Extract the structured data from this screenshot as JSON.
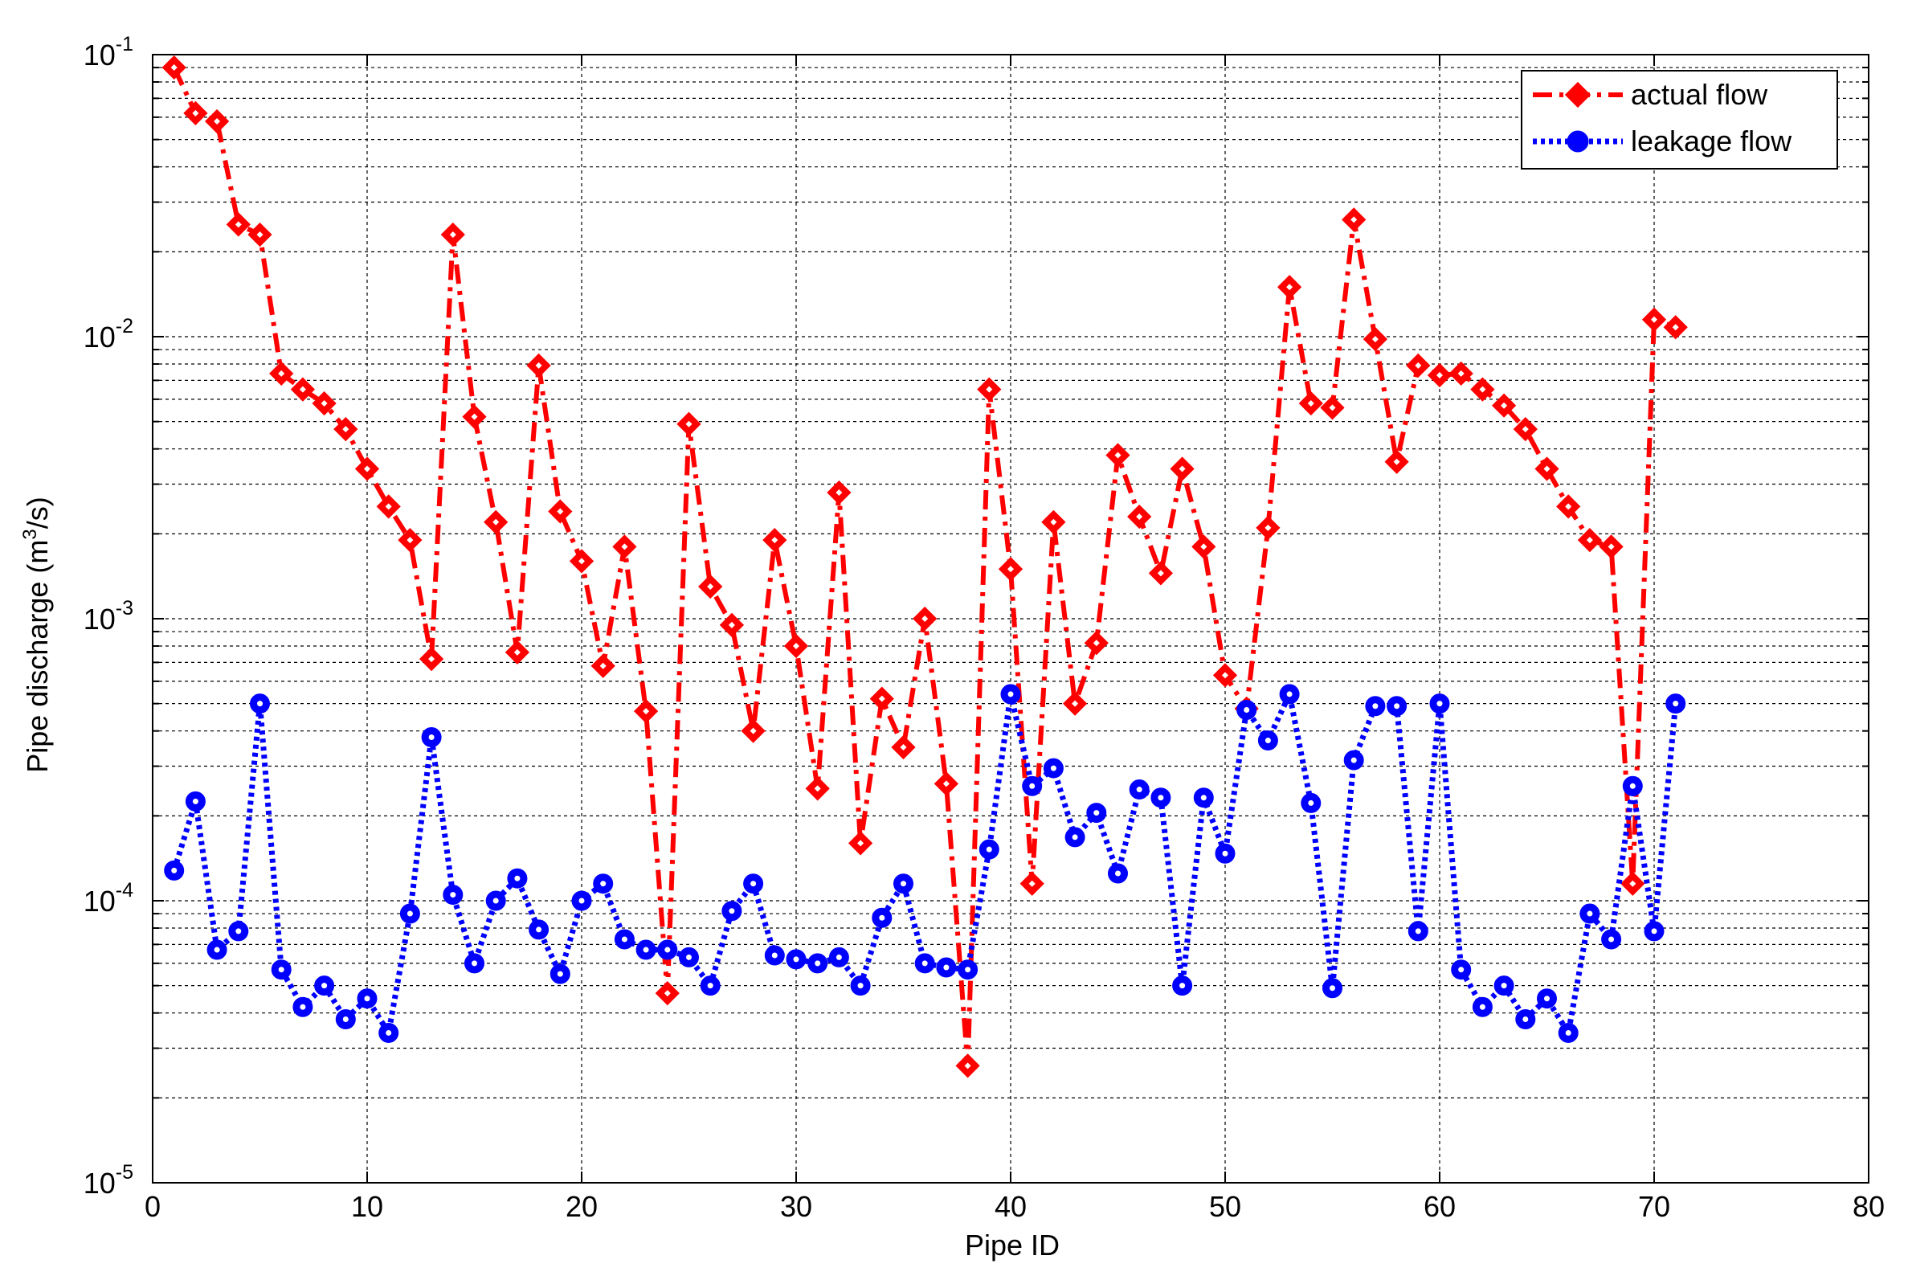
{
  "chart_data": {
    "type": "line",
    "title": "",
    "xlabel": "Pipe ID",
    "ylabel_prefix": "Pipe discharge (m",
    "ylabel_sup": "3",
    "ylabel_suffix": "/s)",
    "x_scale": "linear",
    "y_scale": "log",
    "xlim": [
      0,
      80
    ],
    "ylim": [
      1e-05,
      0.1
    ],
    "xticks": [
      0,
      10,
      20,
      30,
      40,
      50,
      60,
      70,
      80
    ],
    "yticks": [
      {
        "value": 0.1,
        "base": "10",
        "exp": "-1"
      },
      {
        "value": 0.01,
        "base": "10",
        "exp": "-2"
      },
      {
        "value": 0.001,
        "base": "10",
        "exp": "-3"
      },
      {
        "value": 0.0001,
        "base": "10",
        "exp": "-4"
      },
      {
        "value": 1e-05,
        "base": "10",
        "exp": "-5"
      }
    ],
    "grid": true,
    "grid_style": "dashed",
    "legend_position": "top-right",
    "x": [
      1,
      2,
      3,
      4,
      5,
      6,
      7,
      8,
      9,
      10,
      11,
      12,
      13,
      14,
      15,
      16,
      17,
      18,
      19,
      20,
      21,
      22,
      23,
      24,
      25,
      26,
      27,
      28,
      29,
      30,
      31,
      32,
      33,
      34,
      35,
      36,
      37,
      38,
      39,
      40,
      41,
      42,
      43,
      44,
      45,
      46,
      47,
      48,
      49,
      50,
      51,
      52,
      53,
      54,
      55,
      56,
      57,
      58,
      59,
      60,
      61,
      62,
      63,
      64,
      65,
      66,
      67,
      68,
      69,
      70,
      71
    ],
    "series": [
      {
        "name": "actual flow",
        "color": "#ff0000",
        "line_style": "dash-dot",
        "marker": "diamond",
        "values": [
          0.09,
          0.062,
          0.058,
          0.025,
          0.023,
          0.0074,
          0.0065,
          0.0058,
          0.0047,
          0.0034,
          0.0025,
          0.0019,
          0.00072,
          0.023,
          0.0052,
          0.0022,
          0.00076,
          0.0079,
          0.0024,
          0.0016,
          0.00068,
          0.0018,
          0.00047,
          4.7e-05,
          0.0049,
          0.0013,
          0.00095,
          0.0004,
          0.0019,
          0.0008,
          0.00025,
          0.0028,
          0.00016,
          0.00052,
          0.00035,
          0.001,
          0.00026,
          2.6e-05,
          0.0065,
          0.0015,
          0.000115,
          0.0022,
          0.0005,
          0.00082,
          0.0038,
          0.0023,
          0.00145,
          0.0034,
          0.0018,
          0.00063,
          0.00048,
          0.0021,
          0.015,
          0.0058,
          0.0056,
          0.026,
          0.0098,
          0.0036,
          0.0079,
          0.0073,
          0.0074,
          0.0065,
          0.0057,
          0.0047,
          0.0034,
          0.0025,
          0.0019,
          0.0018,
          0.000115,
          0.0115,
          0.0108
        ]
      },
      {
        "name": "leakage flow",
        "color": "#0000ff",
        "line_style": "dotted",
        "marker": "circle",
        "values": [
          0.000128,
          0.000225,
          6.7e-05,
          7.8e-05,
          0.0005,
          5.7e-05,
          4.2e-05,
          5e-05,
          3.8e-05,
          4.5e-05,
          3.4e-05,
          9e-05,
          0.00038,
          0.000105,
          6e-05,
          0.0001,
          0.00012,
          7.9e-05,
          5.5e-05,
          0.0001,
          0.000115,
          7.3e-05,
          6.7e-05,
          6.7e-05,
          6.3e-05,
          5e-05,
          9.2e-05,
          0.000115,
          6.4e-05,
          6.2e-05,
          6e-05,
          6.3e-05,
          5e-05,
          8.7e-05,
          0.000115,
          6e-05,
          5.8e-05,
          5.7e-05,
          0.000152,
          0.00054,
          0.000255,
          0.000295,
          0.000168,
          0.000205,
          0.000125,
          0.000248,
          0.000232,
          5e-05,
          0.000232,
          0.000147,
          0.000475,
          0.00037,
          0.00054,
          0.000222,
          4.9e-05,
          0.000315,
          0.00049,
          0.00049,
          7.8e-05,
          0.0005,
          5.7e-05,
          4.2e-05,
          5e-05,
          3.8e-05,
          4.5e-05,
          3.4e-05,
          9e-05,
          7.3e-05,
          0.000255,
          7.8e-05,
          0.0005
        ]
      }
    ]
  }
}
